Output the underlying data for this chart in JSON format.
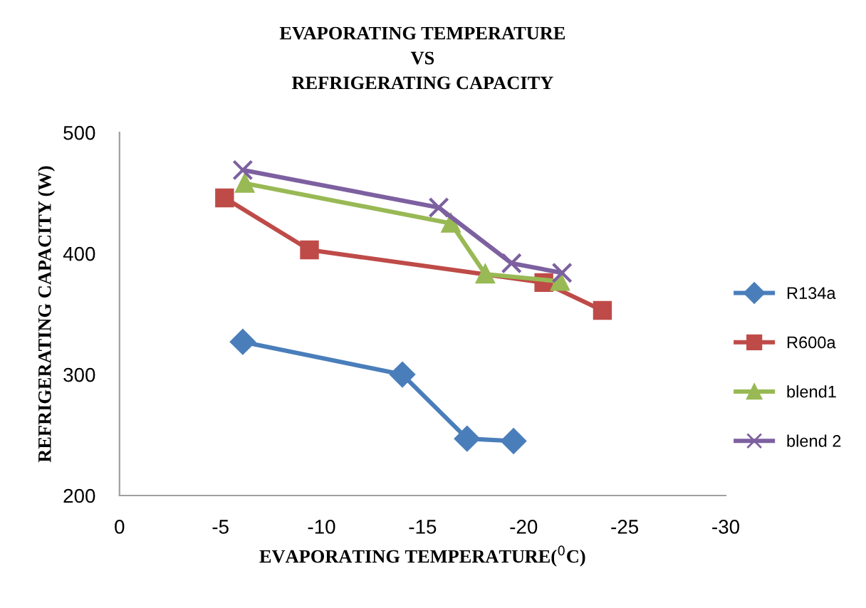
{
  "chart_data": {
    "type": "line",
    "title": "EVAPORATING TEMPERATURE\nVS\nREFRIGERATING CAPACITY",
    "xlabel": "EVAPORATING TEMPERATURE($^{0}$C)",
    "ylabel": "REFRIGERATING CAPACITY (W)",
    "xlim": [
      0,
      -30
    ],
    "xticks": [
      0,
      -5,
      -10,
      -15,
      -20,
      -25,
      -30
    ],
    "ylim": [
      200,
      500
    ],
    "yticks": [
      200,
      300,
      400,
      500
    ],
    "grid": false,
    "legend": "right",
    "series": [
      {
        "name": "R134a",
        "color": "#4a7ebb",
        "marker": "diamond",
        "x": [
          -6.1,
          -14.0,
          -17.2,
          -19.5
        ],
        "values": [
          327,
          300,
          247,
          245
        ]
      },
      {
        "name": "R600a",
        "color": "#be4b48",
        "marker": "square",
        "x": [
          -5.2,
          -9.4,
          -21.0,
          -23.9
        ],
        "values": [
          446,
          403,
          376,
          353
        ]
      },
      {
        "name": "blend1",
        "color": "#98b954",
        "marker": "triangle",
        "x": [
          -6.2,
          -16.4,
          -18.1,
          -21.8
        ],
        "values": [
          458,
          425,
          383,
          377
        ]
      },
      {
        "name": "blend 2",
        "color": "#7d60a0",
        "marker": "cross",
        "x": [
          -6.1,
          -15.8,
          -19.4,
          -21.9
        ],
        "values": [
          469,
          438,
          392,
          384
        ]
      }
    ]
  }
}
